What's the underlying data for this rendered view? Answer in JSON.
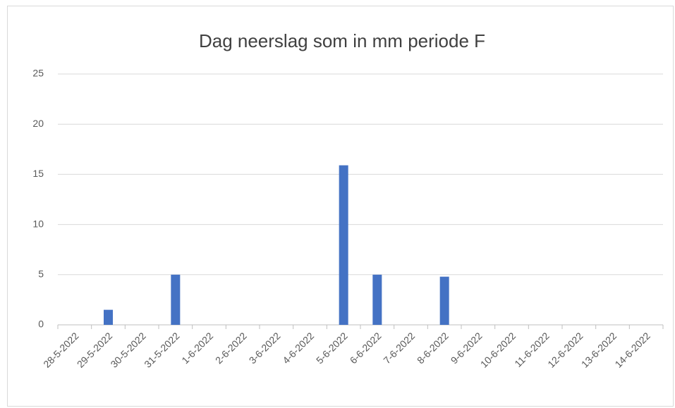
{
  "chart_data": {
    "type": "bar",
    "title": "Dag neerslag som in mm periode F",
    "categories": [
      "28-5-2022",
      "29-5-2022",
      "30-5-2022",
      "31-5-2022",
      "1-6-2022",
      "2-6-2022",
      "3-6-2022",
      "4-6-2022",
      "5-6-2022",
      "6-6-2022",
      "7-6-2022",
      "8-6-2022",
      "9-6-2022",
      "10-6-2022",
      "11-6-2022",
      "12-6-2022",
      "13-6-2022",
      "14-6-2022"
    ],
    "values": [
      0,
      1.5,
      0,
      5,
      0,
      0,
      0,
      0,
      15.9,
      5,
      0,
      4.8,
      0,
      0,
      0,
      0,
      0,
      0
    ],
    "color": "#4472c4",
    "ylim": [
      0,
      25
    ],
    "yticks": [
      0,
      5,
      10,
      15,
      20,
      25
    ],
    "grid": true
  }
}
